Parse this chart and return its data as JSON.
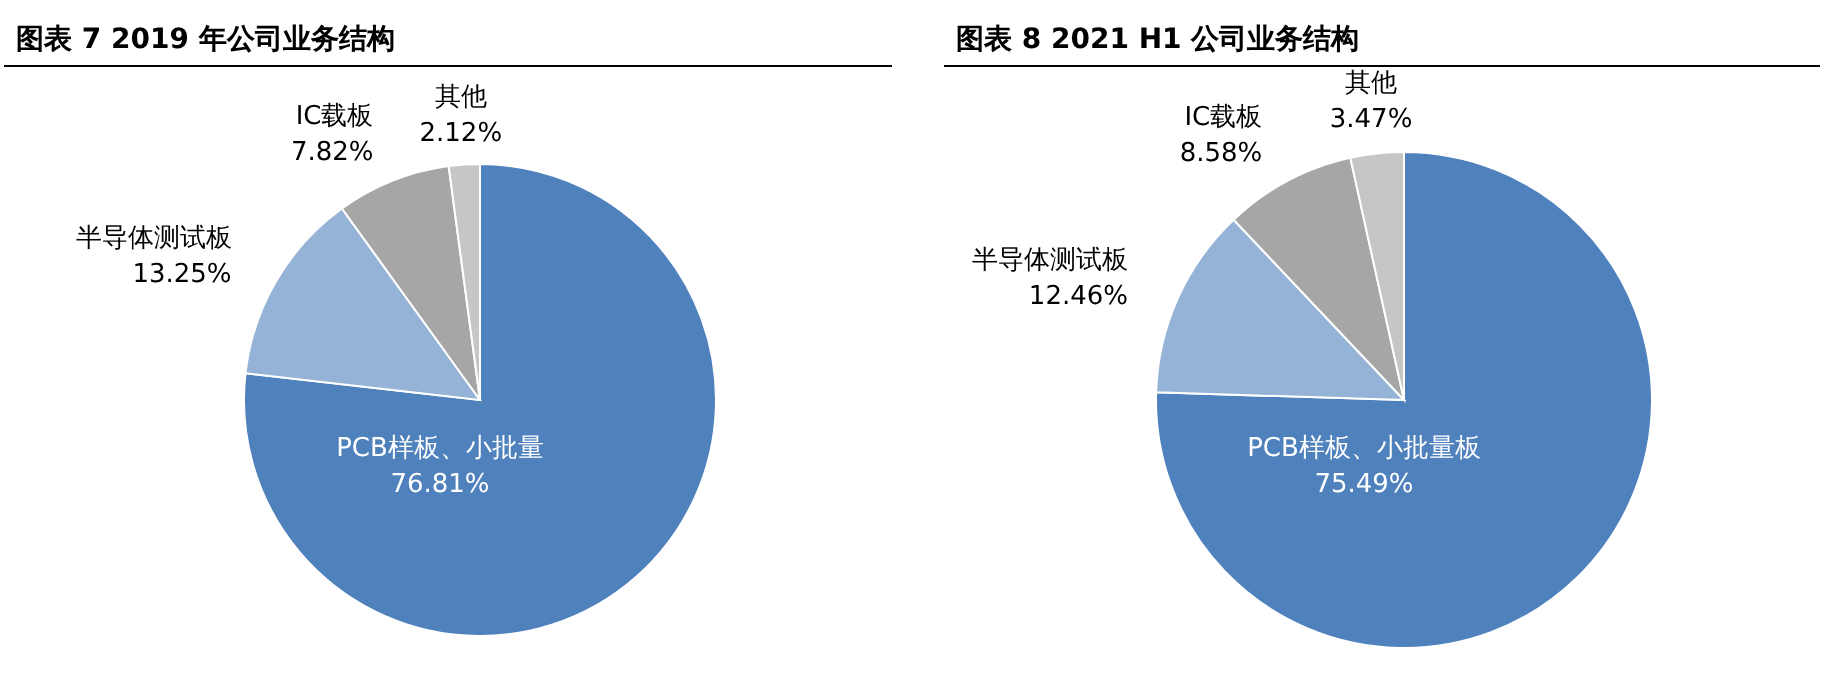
{
  "chart_data": [
    {
      "type": "pie",
      "title": "图表 7 2019 年公司业务结构",
      "categories": [
        "PCB样板、小批量",
        "半导体测试板",
        "IC载板",
        "其他"
      ],
      "values": [
        76.81,
        13.25,
        7.82,
        2.12
      ],
      "value_labels": [
        "76.81%",
        "13.25%",
        "7.82%",
        "2.12%"
      ],
      "colors": [
        "#4f81bd",
        "#95b3d7",
        "#a6a6a6",
        "#c6c6c6"
      ]
    },
    {
      "type": "pie",
      "title": "图表 8 2021 H1 公司业务结构",
      "categories": [
        "PCB样板、小批量板",
        "半导体测试板",
        "IC载板",
        "其他"
      ],
      "values": [
        75.49,
        12.46,
        8.58,
        3.47
      ],
      "value_labels": [
        "75.49%",
        "12.46%",
        "8.58%",
        "3.47%"
      ],
      "colors": [
        "#4f81bd",
        "#95b3d7",
        "#a6a6a6",
        "#c6c6c6"
      ]
    }
  ]
}
